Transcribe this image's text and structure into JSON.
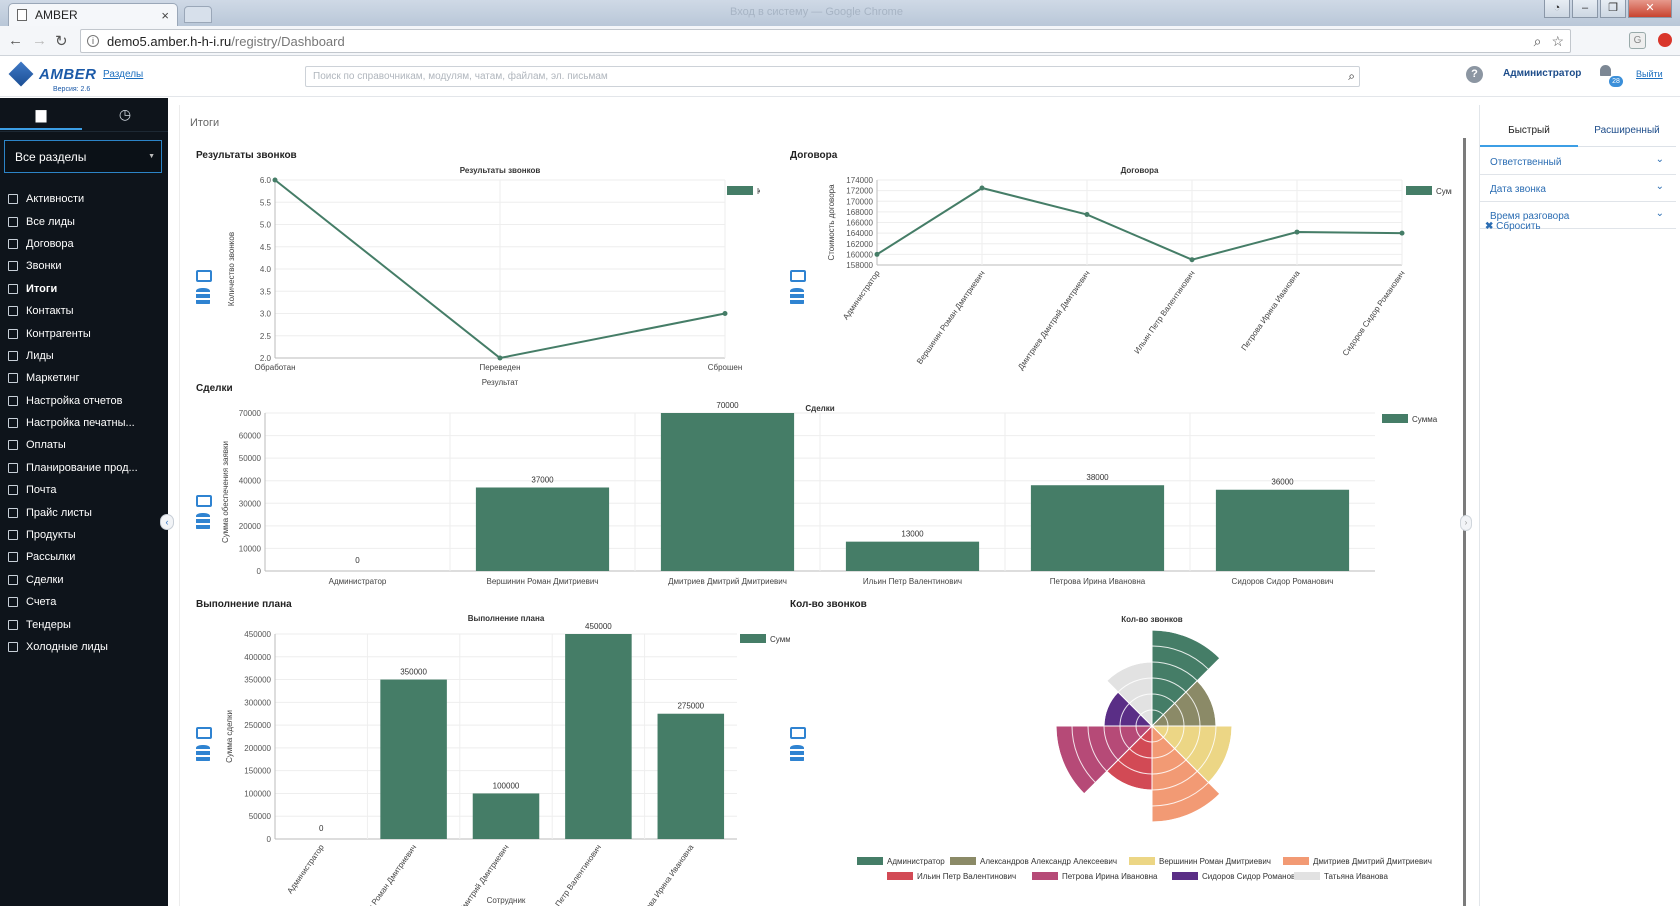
{
  "browser": {
    "tab_title": "AMBER",
    "tab_close": "×",
    "window_title": "Вход в систему — Google Chrome",
    "url_host": "demo5.amber.h-h-i.ru",
    "url_path": "/registry/Dashboard",
    "ext_label": "G"
  },
  "header": {
    "logo_text": "AMBER",
    "version": "Версия: 2.6",
    "sections_link": "Разделы",
    "search_placeholder": "Поиск по справочникам, модулям, чатам, файлам, эл. письмам",
    "user_name": "Администратор",
    "notifications_count": "28",
    "logout": "Выйти"
  },
  "sidebar": {
    "section_select": "Все разделы",
    "items": [
      {
        "label": "Активности",
        "icon": "activity-icon"
      },
      {
        "label": "Все лиды",
        "icon": "leads-icon"
      },
      {
        "label": "Договора",
        "icon": "contracts-icon"
      },
      {
        "label": "Звонки",
        "icon": "phone-icon"
      },
      {
        "label": "Итоги",
        "icon": "totals-icon",
        "active": true
      },
      {
        "label": "Контакты",
        "icon": "contacts-icon"
      },
      {
        "label": "Контрагенты",
        "icon": "counterparties-icon"
      },
      {
        "label": "Лиды",
        "icon": "filter-icon"
      },
      {
        "label": "Маркетинг",
        "icon": "marketing-icon"
      },
      {
        "label": "Настройка отчетов",
        "icon": "report-settings-icon"
      },
      {
        "label": "Настройка печатны...",
        "icon": "print-settings-icon"
      },
      {
        "label": "Оплаты",
        "icon": "payments-icon"
      },
      {
        "label": "Планирование прод...",
        "icon": "planning-icon"
      },
      {
        "label": "Почта",
        "icon": "mail-icon"
      },
      {
        "label": "Прайс листы",
        "icon": "pricelist-icon"
      },
      {
        "label": "Продукты",
        "icon": "products-icon"
      },
      {
        "label": "Рассылки",
        "icon": "mailing-icon"
      },
      {
        "label": "Сделки",
        "icon": "deals-icon"
      },
      {
        "label": "Счета",
        "icon": "invoices-icon"
      },
      {
        "label": "Тендеры",
        "icon": "tenders-icon"
      },
      {
        "label": "Холодные лиды",
        "icon": "cold-leads-icon"
      }
    ]
  },
  "main": {
    "breadcrumb": "Итоги"
  },
  "filters": {
    "tab_quick": "Быстрый",
    "tab_advanced": "Расширенный",
    "rows": [
      "Ответственный",
      "Дата звонка",
      "Время разговора"
    ],
    "reset": "Сбросить"
  },
  "colors": {
    "series": "#457d67",
    "accent": "#3c9ee5",
    "sidebar_bg": "#0e141b"
  },
  "chart_data": [
    {
      "type": "line",
      "panel_title": "Результаты звонков",
      "title": "Результаты звонков",
      "categories": [
        "Обработан",
        "Переведен",
        "Сброшен"
      ],
      "series": [
        {
          "name": "Количество",
          "values": [
            6.0,
            2.0,
            3.0
          ]
        }
      ],
      "xlabel": "Результат",
      "ylabel": "Количество звонков",
      "ylim": [
        2.0,
        6.0
      ],
      "yticks": [
        "2.0",
        "2.5",
        "3.0",
        "3.5",
        "4.0",
        "4.5",
        "5.0",
        "5.5",
        "6.0"
      ],
      "legend": "top-right"
    },
    {
      "type": "line",
      "panel_title": "Договора",
      "title": "Договора",
      "categories": [
        "Администратор",
        "Вершинин Роман Дмитриевич",
        "Дмитриев Дмитрий Дмитриевич",
        "Ильин Петр Валентинович",
        "Петрова Ирина Ивановна",
        "Сидоров Сидор Романович"
      ],
      "series": [
        {
          "name": "Сумма",
          "values": [
            160000,
            172500,
            167500,
            159000,
            164200,
            164000
          ]
        }
      ],
      "ylabel": "Стоимость договора",
      "ylim": [
        158000,
        174000
      ],
      "yticks": [
        "158000",
        "160000",
        "162000",
        "164000",
        "166000",
        "168000",
        "170000",
        "172000",
        "174000"
      ],
      "legend": "top-right"
    },
    {
      "type": "bar",
      "panel_title": "Сделки",
      "title": "Сделки",
      "categories": [
        "Администратор",
        "Вершинин Роман Дмитриевич",
        "Дмитриев Дмитрий Дмитриевич",
        "Ильин Петр Валентинович",
        "Петрова Ирина Ивановна",
        "Сидоров Сидор Романович"
      ],
      "series": [
        {
          "name": "Сумма",
          "values": [
            0,
            37000,
            70000,
            13000,
            38000,
            36000
          ]
        }
      ],
      "data_labels": [
        "0",
        "37000",
        "70000",
        "13000",
        "38000",
        "36000"
      ],
      "ylabel": "Сумма обеспечения заявки",
      "ylim": [
        0,
        70000
      ],
      "yticks": [
        "0",
        "10000",
        "20000",
        "30000",
        "40000",
        "50000",
        "60000",
        "70000"
      ],
      "legend": "top-right"
    },
    {
      "type": "bar",
      "panel_title": "Выполнение плана",
      "title": "Выполнение плана",
      "categories": [
        "Администратор",
        "Вершинин Роман Дмитриевич",
        "Дмитриев Дмитрий Дмитриевич",
        "Ильин Петр Валентинович",
        "Петрова Ирина Ивановна"
      ],
      "series": [
        {
          "name": "Сумма",
          "values": [
            0,
            350000,
            100000,
            450000,
            275000
          ]
        }
      ],
      "data_labels": [
        "0",
        "350000",
        "100000",
        "450000",
        "275000"
      ],
      "xlabel": "Сотрудник",
      "ylabel": "Сумма сделки",
      "ylim": [
        0,
        450000
      ],
      "yticks": [
        "0",
        "50000",
        "100000",
        "150000",
        "200000",
        "250000",
        "300000",
        "350000",
        "400000",
        "450000"
      ],
      "legend": "top-right"
    },
    {
      "type": "pie",
      "panel_title": "Кол-во звонков",
      "title": "Кол-во звонков",
      "labels": [
        "Администратор",
        "Александров Александр Алексеевич",
        "Вершинин Роман Дмитриевич",
        "Дмитриев Дмитрий Дмитриевич",
        "Ильин Петр Валентинович",
        "Петрова Ирина Ивановна",
        "Сидоров Сидор Романович",
        "Татьяна Иванова"
      ],
      "values": [
        6,
        4,
        5,
        6,
        4,
        6,
        3,
        4
      ],
      "colors": [
        "#457d67",
        "#8b8a67",
        "#ecd685",
        "#f29a74",
        "#d24a55",
        "#b64a77",
        "#5a2e86",
        "#e2e2e2"
      ],
      "legend": "bottom"
    }
  ]
}
